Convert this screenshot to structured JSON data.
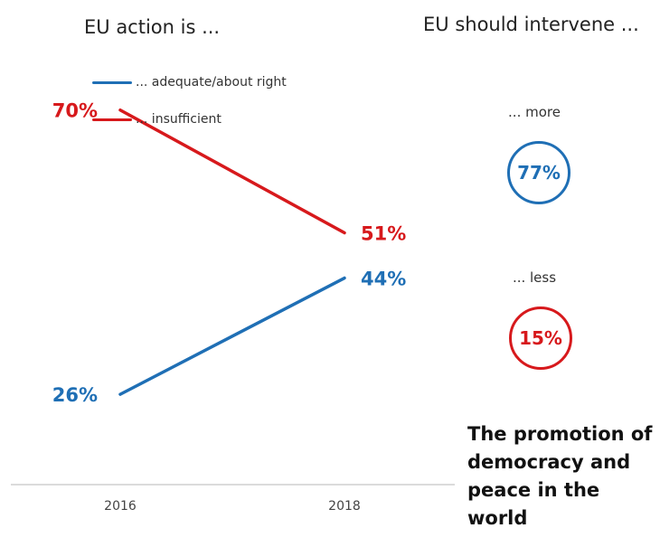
{
  "titles": {
    "left": "EU action is ...",
    "right": "EU should intervene ..."
  },
  "legend": [
    {
      "label": "... adequate/about right",
      "color": "#1f6fb5"
    },
    {
      "label": "... insufficient",
      "color": "#d7191c"
    }
  ],
  "intervene": {
    "more": {
      "label": "... more",
      "value": "77%",
      "color": "#1f6fb5"
    },
    "less": {
      "label": "... less",
      "value": "15%",
      "color": "#d7191c"
    }
  },
  "topic": "The promotion of democracy and peace in the world",
  "chart_data": {
    "type": "line",
    "categories": [
      "2016",
      "2018"
    ],
    "series": [
      {
        "name": "... adequate/about right",
        "values": [
          26,
          44
        ],
        "labels": [
          "26%",
          "44%"
        ],
        "color": "#1f6fb5"
      },
      {
        "name": "... insufficient",
        "values": [
          70,
          51
        ],
        "labels": [
          "70%",
          "51%"
        ],
        "color": "#d7191c"
      }
    ],
    "ylim": [
      20,
      75
    ],
    "xlabel": "",
    "ylabel": "",
    "grid": false,
    "legend_position": "top-left"
  }
}
